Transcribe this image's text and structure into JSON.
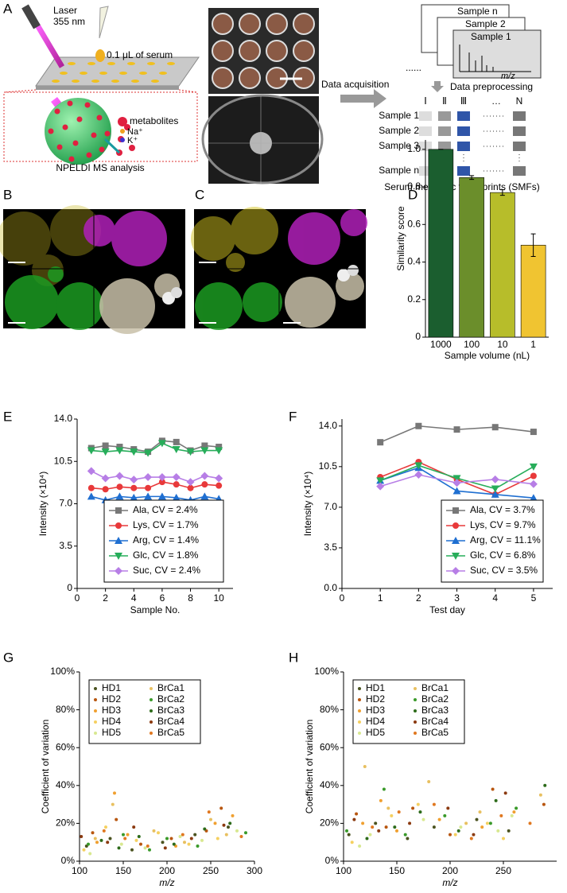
{
  "panel_labels": [
    "A",
    "B",
    "C",
    "D",
    "E",
    "F",
    "G",
    "H"
  ],
  "panel_a": {
    "laser": "Laser",
    "wavelength": "355 nm",
    "serum": "0.1 μL of serum",
    "metabolites": "metabolites",
    "na": "Na⁺",
    "k": "K⁺",
    "caption": "NPELDI MS analysis",
    "acquisition": "Data acquisition",
    "spectra": [
      "Sample n",
      "Sample 2",
      "Sample 1"
    ],
    "mz": "m/z",
    "preprocessing": "Data preprocessing",
    "features": [
      "Ⅰ",
      "Ⅱ",
      "Ⅲ",
      "…",
      "N"
    ],
    "rows": [
      "Sample 1",
      "Sample 2",
      "Sample 3",
      "Sample n"
    ],
    "fingerprints": "Serum metabolic fingerprints (SMFs)"
  },
  "chart_data": [
    {
      "type": "bar",
      "ylabel": "Similarity score",
      "xlabel": "Sample volume (nL)",
      "categories": [
        "1000",
        "100",
        "10",
        "1"
      ],
      "values": [
        1.0,
        0.85,
        0.77,
        0.49
      ],
      "errors": [
        0,
        0.01,
        0.015,
        0.06
      ],
      "colors": [
        "#1b5e2f",
        "#6b8e2b",
        "#b7bd2a",
        "#f0c431"
      ],
      "ylim": [
        0,
        1.05
      ],
      "yticks": [
        0,
        0.2,
        0.4,
        0.6,
        0.8,
        {
          "value": 1,
          "label": "1.0"
        }
      ]
    },
    {
      "type": "line",
      "ylabel": "Intensity (×10⁴)",
      "xlabel": "Sample No.",
      "x": [
        1,
        2,
        3,
        4,
        5,
        6,
        7,
        8,
        9,
        10
      ],
      "xlim": [
        0,
        11
      ],
      "xticks": [
        0,
        2,
        4,
        6,
        8,
        10
      ],
      "ylim": [
        0,
        14
      ],
      "yticks": [
        0,
        3.5,
        {
          "value": 7,
          "label": "7.0"
        },
        10.5,
        {
          "value": 14,
          "label": "14.0"
        }
      ],
      "legend": "lower right",
      "series": [
        {
          "name": "Ala, CV = 2.4%",
          "color": "#777777",
          "marker": "square",
          "values": [
            11.6,
            11.8,
            11.7,
            11.5,
            11.3,
            12.2,
            12.1,
            11.4,
            11.8,
            11.7
          ]
        },
        {
          "name": "Lys, CV = 1.7%",
          "color": "#e8393a",
          "marker": "circle",
          "values": [
            8.3,
            8.2,
            8.4,
            8.3,
            8.3,
            8.8,
            8.6,
            8.3,
            8.6,
            8.5
          ]
        },
        {
          "name": "Arg, CV = 1.4%",
          "color": "#1f6fd1",
          "marker": "triangle-up",
          "values": [
            7.6,
            7.3,
            7.6,
            7.5,
            7.6,
            7.6,
            7.5,
            7.3,
            7.6,
            7.4
          ]
        },
        {
          "name": "Glc, CV = 1.8%",
          "color": "#27ad5a",
          "marker": "triangle-down",
          "values": [
            11.4,
            11.3,
            11.4,
            11.3,
            11.2,
            12.0,
            11.5,
            11.3,
            11.4,
            11.4
          ]
        },
        {
          "name": "Suc, CV = 2.4%",
          "color": "#b77ee6",
          "marker": "diamond",
          "values": [
            9.7,
            9.1,
            9.3,
            9.0,
            9.2,
            9.2,
            9.2,
            8.8,
            9.3,
            9.1
          ]
        }
      ]
    },
    {
      "type": "line",
      "ylabel": "Intensity (×10⁴)",
      "xlabel": "Test day",
      "x": [
        1,
        2,
        3,
        4,
        5
      ],
      "xlim": [
        0,
        5.5
      ],
      "xticks": [
        0,
        1,
        2,
        3,
        4,
        5
      ],
      "ylim": [
        0,
        14.6
      ],
      "yticks": [
        {
          "value": 0,
          "label": "0.0"
        },
        3.5,
        {
          "value": 7,
          "label": "7.0"
        },
        10.5,
        {
          "value": 14,
          "label": "14.0"
        }
      ],
      "legend": "lower right",
      "series": [
        {
          "name": "Ala, CV = 3.7%",
          "color": "#777777",
          "marker": "square",
          "values": [
            12.6,
            14.0,
            13.7,
            13.9,
            13.5
          ]
        },
        {
          "name": "Lys, CV = 9.7%",
          "color": "#e8393a",
          "marker": "circle",
          "values": [
            9.6,
            10.9,
            9.4,
            8.1,
            9.7
          ]
        },
        {
          "name": "Arg, CV = 11.1%",
          "color": "#1f6fd1",
          "marker": "triangle-up",
          "values": [
            9.3,
            10.4,
            8.4,
            8.1,
            7.8
          ]
        },
        {
          "name": "Glc, CV = 6.8%",
          "color": "#27ad5a",
          "marker": "triangle-down",
          "values": [
            9.3,
            10.6,
            9.5,
            8.6,
            10.5
          ]
        },
        {
          "name": "Suc, CV = 3.5%",
          "color": "#b77ee6",
          "marker": "diamond",
          "values": [
            8.8,
            9.8,
            9.1,
            9.4,
            9.0
          ]
        }
      ]
    },
    {
      "type": "scatter",
      "ylabel": "Coefficient of variation",
      "xlabel": "m/z",
      "xlim": [
        100,
        300
      ],
      "xticks": [
        100,
        150,
        200,
        250,
        300
      ],
      "ylim": [
        0,
        100
      ],
      "yticks": [
        {
          "value": 0,
          "label": "0%"
        },
        {
          "value": 20,
          "label": "20%"
        },
        {
          "value": 40,
          "label": "40%"
        },
        {
          "value": 60,
          "label": "60%"
        },
        {
          "value": 80,
          "label": "80%"
        },
        {
          "value": 100,
          "label": "100%"
        }
      ],
      "legend": "upper left",
      "series": [
        {
          "name": "HD1",
          "color": "#4b5320",
          "x": [
            108,
            135,
            160,
            195,
            232,
            270
          ],
          "values": [
            8,
            12,
            6,
            10,
            14,
            18
          ]
        },
        {
          "name": "HD2",
          "color": "#b8560f",
          "x": [
            115,
            142,
            170,
            205,
            245,
            262
          ],
          "values": [
            15,
            22,
            9,
            12,
            16,
            28
          ]
        },
        {
          "name": "HD3",
          "color": "#f0a030",
          "x": [
            120,
            140,
            155,
            210,
            255,
            275
          ],
          "values": [
            10,
            36,
            14,
            8,
            20,
            24
          ]
        },
        {
          "name": "HD4",
          "color": "#f5d060",
          "x": [
            105,
            130,
            165,
            190,
            225,
            258
          ],
          "values": [
            6,
            18,
            11,
            15,
            9,
            12
          ]
        },
        {
          "name": "HD5",
          "color": "#d8e890",
          "x": [
            112,
            148,
            175,
            215,
            240,
            280
          ],
          "values": [
            4,
            9,
            7,
            13,
            11,
            16
          ]
        },
        {
          "name": "BrCa1",
          "color": "#e8c060",
          "x": [
            118,
            138,
            185,
            220,
            250,
            268
          ],
          "values": [
            12,
            30,
            16,
            10,
            22,
            14
          ]
        },
        {
          "name": "BrCa2",
          "color": "#3a9a2a",
          "x": [
            110,
            150,
            180,
            200,
            235,
            290
          ],
          "values": [
            9,
            14,
            6,
            12,
            8,
            15
          ]
        },
        {
          "name": "BrCa3",
          "color": "#2d6b1a",
          "x": [
            125,
            145,
            168,
            208,
            243,
            272
          ],
          "values": [
            11,
            7,
            13,
            9,
            17,
            20
          ]
        },
        {
          "name": "BrCa4",
          "color": "#8b3a10",
          "x": [
            102,
            132,
            162,
            198,
            228,
            265
          ],
          "values": [
            13,
            10,
            18,
            7,
            12,
            19
          ]
        },
        {
          "name": "BrCa5",
          "color": "#e07820",
          "x": [
            128,
            152,
            178,
            218,
            248,
            285
          ],
          "values": [
            16,
            12,
            8,
            14,
            26,
            13
          ]
        }
      ]
    },
    {
      "type": "scatter",
      "ylabel": "Coefficient of variation",
      "xlabel": "m/z",
      "xlim": [
        100,
        300
      ],
      "xticks": [
        100,
        150,
        200,
        250
      ],
      "ylim": [
        0,
        100
      ],
      "yticks": [
        {
          "value": 0,
          "label": "0%"
        },
        {
          "value": 20,
          "label": "20%"
        },
        {
          "value": 40,
          "label": "40%"
        },
        {
          "value": 60,
          "label": "60%"
        },
        {
          "value": 80,
          "label": "80%"
        },
        {
          "value": 100,
          "label": "100%"
        }
      ],
      "legend": "upper left",
      "series": [
        {
          "name": "HD1",
          "color": "#4b5320",
          "x": [
            105,
            130,
            160,
            185,
            225,
            255
          ],
          "values": [
            14,
            20,
            12,
            18,
            22,
            16
          ]
        },
        {
          "name": "HD2",
          "color": "#b8560f",
          "x": [
            112,
            140,
            165,
            200,
            240,
            288
          ],
          "values": [
            25,
            18,
            28,
            14,
            38,
            30
          ]
        },
        {
          "name": "HD3",
          "color": "#f0a030",
          "x": [
            118,
            135,
            150,
            190,
            230,
            260
          ],
          "values": [
            20,
            32,
            16,
            22,
            18,
            26
          ]
        },
        {
          "name": "HD4",
          "color": "#f5d060",
          "x": [
            108,
            145,
            170,
            205,
            235,
            250
          ],
          "values": [
            10,
            24,
            30,
            14,
            20,
            12
          ]
        },
        {
          "name": "HD5",
          "color": "#d8e890",
          "x": [
            115,
            125,
            175,
            210,
            245,
            258
          ],
          "values": [
            8,
            14,
            22,
            18,
            16,
            24
          ]
        },
        {
          "name": "BrCa1",
          "color": "#e8c060",
          "x": [
            120,
            142,
            180,
            215,
            228,
            285
          ],
          "values": [
            50,
            28,
            42,
            20,
            26,
            35
          ]
        },
        {
          "name": "BrCa2",
          "color": "#3a9a2a",
          "x": [
            103,
            138,
            158,
            195,
            238,
            262
          ],
          "values": [
            16,
            38,
            14,
            24,
            20,
            28
          ]
        },
        {
          "name": "BrCa3",
          "color": "#2d6b1a",
          "x": [
            122,
            148,
            172,
            208,
            243,
            289
          ],
          "values": [
            12,
            18,
            26,
            16,
            32,
            40
          ]
        },
        {
          "name": "BrCa4",
          "color": "#8b3a10",
          "x": [
            110,
            133,
            162,
            198,
            222,
            252
          ],
          "values": [
            22,
            16,
            20,
            28,
            14,
            36
          ]
        },
        {
          "name": "BrCa5",
          "color": "#e07820",
          "x": [
            127,
            152,
            185,
            220,
            248,
            275
          ],
          "values": [
            18,
            26,
            30,
            12,
            24,
            20
          ]
        }
      ]
    }
  ]
}
